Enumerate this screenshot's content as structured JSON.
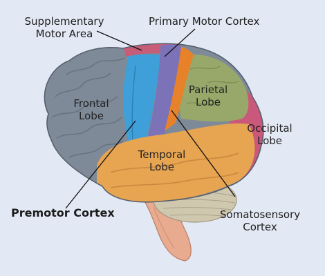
{
  "labels": {
    "supplementary_motor_area": [
      "Supplementary",
      "Motor Area"
    ],
    "primary_motor_cortex": "Primary Motor Cortex",
    "frontal_lobe": [
      "Frontal",
      "Lobe"
    ],
    "parietal_lobe": [
      "Parietal",
      "Lobe"
    ],
    "occipital_lobe": [
      "Occipital",
      "Lobe"
    ],
    "temporal_lobe": [
      "Temporal",
      "Lobe"
    ],
    "premotor_cortex": "Premotor Cortex",
    "somatosensory_cortex": [
      "Somatosensory",
      "Cortex"
    ]
  },
  "colors": {
    "background": "#e3e9f4",
    "frontal": "#7f8a99",
    "premotor": "#3f9fd8",
    "primary_motor": "#7b72b8",
    "somatosensory": "#e8822a",
    "parietal": "#98a86a",
    "occipital": "#c9587a",
    "supplementary": "#c75d78",
    "temporal": "#e7a451",
    "cerebellum": "#cfc7ae",
    "brainstem": "#e8ab8f"
  }
}
